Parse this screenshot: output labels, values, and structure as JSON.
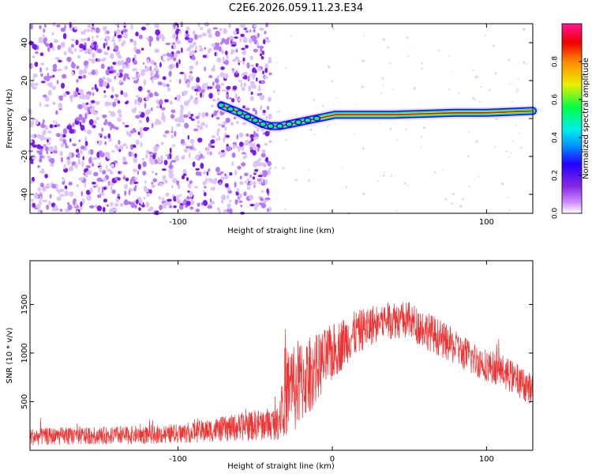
{
  "title": "C2E6.2026.059.11.23.E34",
  "colors": {
    "snr_line": "#ee3333",
    "axis": "#000000",
    "scatter_purple": "#7a1cf0",
    "colormap": [
      "#ffffff",
      "#cc88ff",
      "#8a2be2",
      "#2200ff",
      "#0099ff",
      "#00eeee",
      "#00ff44",
      "#eeee00",
      "#ff8800",
      "#ee0000",
      "#ff1493"
    ]
  },
  "chart_data": [
    {
      "type": "heatmap",
      "title": "C2E6.2026.059.11.23.E34",
      "xlabel": "Height of straight line (km)",
      "ylabel": "Frequency (Hz)",
      "xlim": [
        -196,
        130
      ],
      "ylim": [
        -50,
        50
      ],
      "xticks": [
        -100,
        0,
        100
      ],
      "xtick_labels": [
        "-100",
        "",
        "100"
      ],
      "yticks": [
        -40,
        -20,
        0,
        20,
        40
      ],
      "ytick_labels": [
        "-40",
        "-20",
        "0",
        "20",
        "40"
      ],
      "noise_region_km": [
        -196,
        -40
      ],
      "signal_track": [
        {
          "x": -72,
          "y": 7
        },
        {
          "x": -66,
          "y": 5
        },
        {
          "x": -60,
          "y": 3
        },
        {
          "x": -55,
          "y": 1
        },
        {
          "x": -50,
          "y": -1
        },
        {
          "x": -45,
          "y": -3
        },
        {
          "x": -40,
          "y": -4
        },
        {
          "x": -34,
          "y": -4
        },
        {
          "x": -28,
          "y": -3
        },
        {
          "x": -22,
          "y": -2
        },
        {
          "x": -16,
          "y": -1
        },
        {
          "x": -10,
          "y": 0
        },
        {
          "x": -4,
          "y": 1
        },
        {
          "x": 2,
          "y": 2
        },
        {
          "x": 10,
          "y": 2
        },
        {
          "x": 20,
          "y": 2
        },
        {
          "x": 40,
          "y": 2
        },
        {
          "x": 60,
          "y": 2.5
        },
        {
          "x": 80,
          "y": 3
        },
        {
          "x": 100,
          "y": 3
        },
        {
          "x": 115,
          "y": 3.5
        },
        {
          "x": 130,
          "y": 4
        }
      ],
      "colorbar": {
        "label": "Normalized spectral amplitude",
        "range": [
          0,
          1
        ],
        "ticks": [
          0,
          0.2,
          0.4,
          0.6,
          0.8
        ],
        "tick_labels": [
          "0.0",
          "0.2",
          "0.4",
          "0.6",
          "0.8"
        ]
      }
    },
    {
      "type": "line",
      "xlabel": "Height of straight line (km)",
      "ylabel": "SNR (10 * v/v)",
      "xlim": [
        -196,
        130
      ],
      "ylim": [
        0,
        1950
      ],
      "xticks": [
        -100,
        0,
        100
      ],
      "xtick_labels": [
        "-100",
        "0",
        "100"
      ],
      "yticks": [
        500,
        1000,
        1500
      ],
      "ytick_labels": [
        "500",
        "1000",
        "1500"
      ],
      "series": [
        {
          "name": "SNR",
          "envelope": {
            "x": [
              -196,
              -150,
              -100,
              -70,
              -50,
              -40,
              -35,
              -32,
              -25,
              -20,
              -10,
              0,
              10,
              20,
              30,
              40,
              50,
              60,
              70,
              80,
              90,
              100,
              110,
              120,
              130
            ],
            "mean": [
              140,
              150,
              170,
              220,
              260,
              270,
              280,
              600,
              650,
              700,
              850,
              1000,
              1150,
              1250,
              1320,
              1350,
              1330,
              1250,
              1150,
              1050,
              950,
              880,
              820,
              720,
              620
            ],
            "spread": [
              90,
              90,
              100,
              130,
              160,
              170,
              170,
              450,
              500,
              450,
              350,
              300,
              250,
              220,
              200,
              200,
              200,
              200,
              190,
              180,
              180,
              170,
              170,
              170,
              160
            ]
          }
        }
      ]
    }
  ]
}
